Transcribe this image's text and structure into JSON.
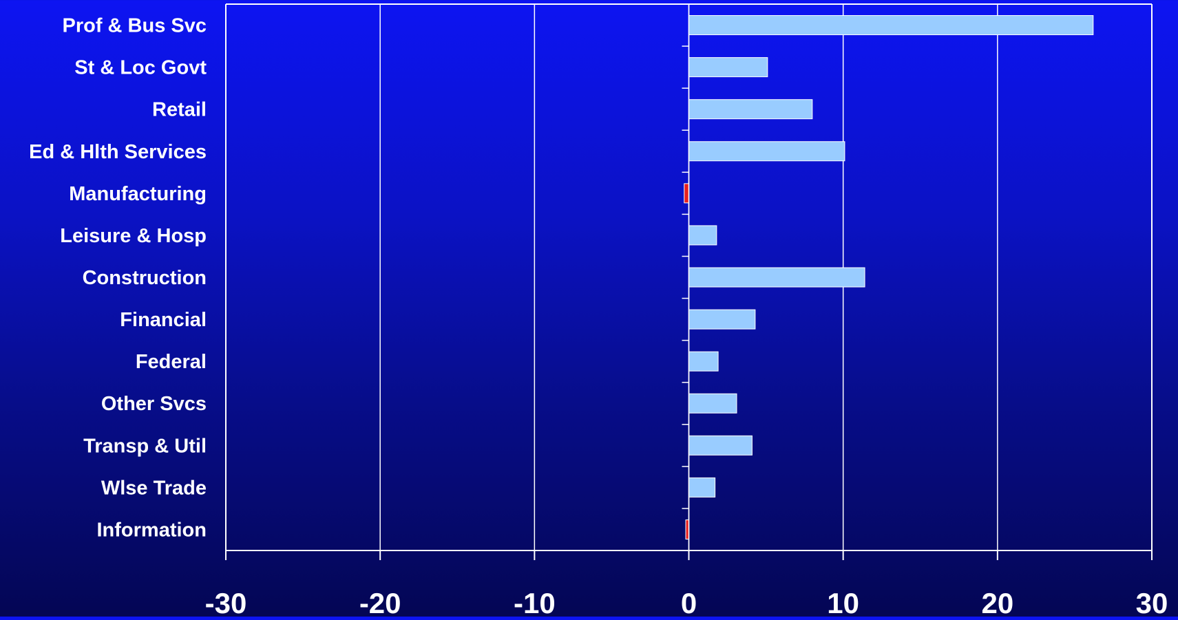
{
  "chart_data": {
    "type": "bar",
    "orientation": "horizontal",
    "categories": [
      "Prof & Bus Svc",
      "St & Loc Govt",
      "Retail",
      "Ed & Hlth Services",
      "Manufacturing",
      "Leisure & Hosp",
      "Construction",
      "Financial",
      "Federal",
      "Other Svcs",
      "Transp & Util",
      "Wlse Trade",
      "Information"
    ],
    "values": [
      26.2,
      5.1,
      8.0,
      10.1,
      -0.3,
      1.8,
      11.4,
      4.3,
      1.9,
      3.1,
      4.1,
      1.7,
      -0.2
    ],
    "xlim": [
      -30,
      30
    ],
    "xticks": [
      -30,
      -20,
      -10,
      0,
      10,
      20,
      30
    ],
    "tick_labels": [
      "-30",
      "-20",
      "-10",
      "0",
      "10",
      "20",
      "30"
    ],
    "grid": "vertical",
    "title": "",
    "xlabel": "",
    "ylabel": "",
    "colors": {
      "positive_bar": "#99ccff",
      "negative_bar": "#e8201e",
      "bar_edge": "#ffffff",
      "grid": "#ffffff",
      "text": "#ffffff"
    }
  }
}
